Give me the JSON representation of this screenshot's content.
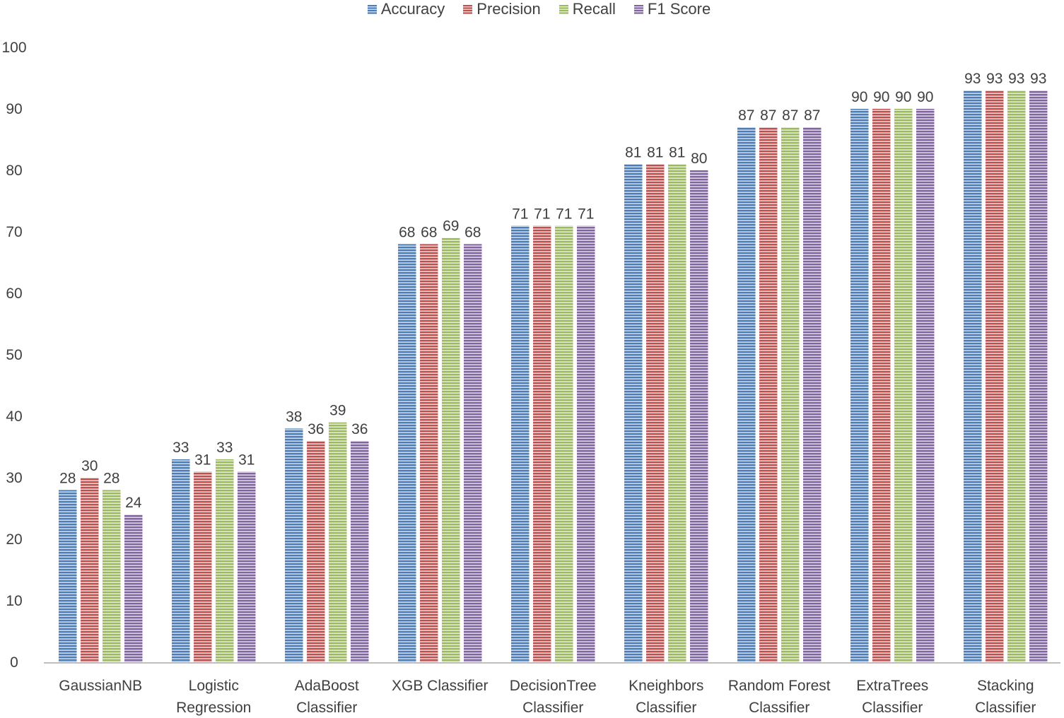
{
  "chart_data": {
    "type": "bar",
    "title": "",
    "xlabel": "",
    "ylabel": "",
    "ylim": [
      0,
      100
    ],
    "yticks": [
      0,
      10,
      20,
      30,
      40,
      50,
      60,
      70,
      80,
      90,
      100
    ],
    "ytick_labels": [
      "0",
      "10",
      "20",
      "30",
      "40",
      "50",
      "60",
      "70",
      "80",
      "90",
      "100"
    ],
    "grid": false,
    "legend_position": "top-center",
    "categories": [
      [
        "GaussianNB"
      ],
      [
        "Logistic",
        "Regression"
      ],
      [
        "AdaBoost",
        "Classifier"
      ],
      [
        "XGB Classifier"
      ],
      [
        "DecisionTree",
        "Classifier"
      ],
      [
        "Kneighbors",
        "Classifier"
      ],
      [
        "Random Forest",
        "Classifier"
      ],
      [
        "ExtraTrees",
        "Classifier"
      ],
      [
        "Stacking",
        "Classifier"
      ]
    ],
    "series": [
      {
        "name": "Accuracy",
        "color": "#4a7ebb",
        "stripe": "#c9d9ee",
        "values": [
          28,
          33,
          38,
          68,
          71,
          81,
          87,
          90,
          93
        ]
      },
      {
        "name": "Precision",
        "color": "#c0504d",
        "stripe": "#efcfce",
        "values": [
          30,
          31,
          36,
          68,
          71,
          81,
          87,
          90,
          93
        ]
      },
      {
        "name": "Recall",
        "color": "#9bbb59",
        "stripe": "#e3ecd0",
        "values": [
          28,
          33,
          39,
          69,
          71,
          81,
          87,
          90,
          93
        ]
      },
      {
        "name": "F1 Score",
        "color": "#8064a2",
        "stripe": "#ddd4e8",
        "values": [
          24,
          31,
          36,
          68,
          71,
          80,
          87,
          90,
          93
        ]
      }
    ]
  }
}
